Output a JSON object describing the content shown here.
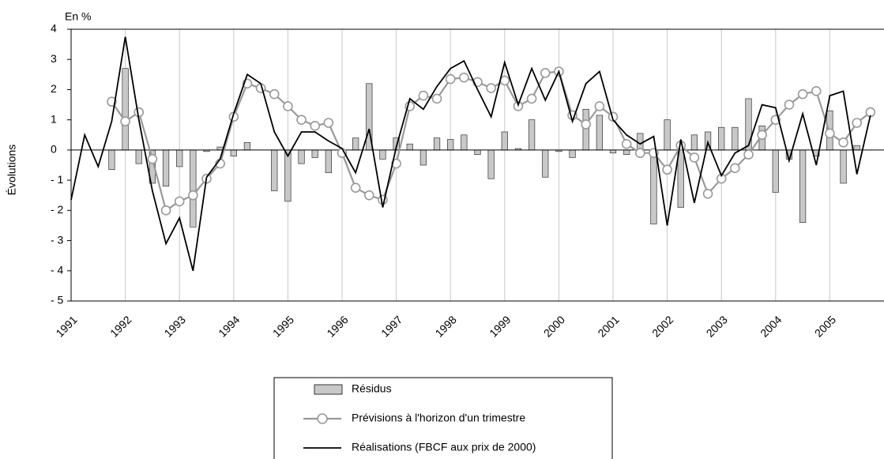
{
  "chart_data": {
    "type": "combo",
    "y_unit_label": "En %",
    "ylabel": "Évolutions",
    "x": [
      1991,
      1991.25,
      1991.5,
      1991.75,
      1992,
      1992.25,
      1992.5,
      1992.75,
      1993,
      1993.25,
      1993.5,
      1993.75,
      1994,
      1994.25,
      1994.5,
      1994.75,
      1995,
      1995.25,
      1995.5,
      1995.75,
      1996,
      1996.25,
      1996.5,
      1996.75,
      1997,
      1997.25,
      1997.5,
      1997.75,
      1998,
      1998.25,
      1998.5,
      1998.75,
      1999,
      1999.25,
      1999.5,
      1999.75,
      2000,
      2000.25,
      2000.5,
      2000.75,
      2001,
      2001.25,
      2001.5,
      2001.75,
      2002,
      2002.25,
      2002.5,
      2002.75,
      2003,
      2003.25,
      2003.5,
      2003.75,
      2004,
      2004.25,
      2004.5,
      2004.75,
      2005,
      2005.25,
      2005.5,
      2005.75,
      2006
    ],
    "series": [
      {
        "name": "Résidus",
        "kind": "bar",
        "color": "#c8c8c8",
        "values": [
          null,
          null,
          null,
          -0.65,
          2.7,
          -0.45,
          -1.1,
          -1.2,
          -0.55,
          -2.55,
          -0.05,
          0.1,
          -0.2,
          0.25,
          null,
          -1.35,
          -1.7,
          -0.45,
          -0.25,
          -0.75,
          null,
          0.4,
          2.2,
          -0.3,
          0.4,
          0.2,
          -0.5,
          0.4,
          0.35,
          0.5,
          -0.15,
          -0.95,
          0.6,
          0.05,
          1.0,
          -0.9,
          -0.05,
          -0.25,
          1.35,
          1.15,
          -0.1,
          -0.15,
          0.55,
          -2.45,
          1.0,
          -1.9,
          0.5,
          0.6,
          0.75,
          0.75,
          1.7,
          0.8,
          -1.4,
          -0.3,
          -2.4,
          -0.2,
          1.3,
          -1.1,
          0.15,
          null,
          null
        ]
      },
      {
        "name": "Prévisions à l'horizon d'un trimestre",
        "kind": "line-marker",
        "color": "#999999",
        "values": [
          null,
          null,
          null,
          1.6,
          0.95,
          1.25,
          -0.3,
          -2.0,
          -1.7,
          -1.5,
          -0.95,
          -0.45,
          1.1,
          2.2,
          2.05,
          1.85,
          1.45,
          1.0,
          0.8,
          0.9,
          -0.1,
          -1.25,
          -1.5,
          -1.65,
          -0.45,
          1.45,
          1.8,
          1.7,
          2.35,
          2.4,
          2.25,
          2.05,
          2.3,
          1.45,
          1.7,
          2.55,
          2.6,
          1.15,
          0.85,
          1.45,
          1.1,
          0.2,
          -0.1,
          -0.1,
          -0.65,
          0.15,
          -0.25,
          -1.45,
          -0.95,
          -0.6,
          -0.15,
          0.5,
          1.0,
          1.5,
          1.85,
          1.95,
          0.55,
          0.25,
          0.9,
          1.25,
          null
        ]
      },
      {
        "name": "Réalisations (FBCF aux prix de 2000)",
        "kind": "line",
        "color": "#000000",
        "values": [
          -1.65,
          0.5,
          -0.55,
          0.95,
          3.75,
          1.0,
          -1.35,
          -3.1,
          -2.25,
          -4.0,
          -0.9,
          -0.3,
          1.2,
          2.5,
          2.2,
          0.6,
          -0.2,
          0.6,
          0.6,
          0.3,
          0.05,
          -0.75,
          0.7,
          -1.9,
          0.1,
          1.7,
          1.35,
          2.1,
          2.7,
          2.95,
          2.0,
          1.1,
          2.9,
          1.5,
          2.7,
          1.65,
          2.6,
          0.95,
          2.2,
          2.6,
          1.0,
          0.5,
          0.2,
          0.45,
          -2.5,
          0.35,
          -1.75,
          0.25,
          -0.85,
          -0.1,
          0.15,
          1.5,
          1.4,
          -0.35,
          1.2,
          -0.5,
          1.8,
          1.95,
          -0.8,
          1.15,
          null
        ]
      }
    ],
    "xlim": [
      1991,
      2006
    ],
    "xticks": [
      1991,
      1992,
      1993,
      1994,
      1995,
      1996,
      1997,
      1998,
      1999,
      2000,
      2001,
      2002,
      2003,
      2004,
      2005
    ],
    "ylim": [
      -5,
      4
    ],
    "yticks": [
      {
        "value": -5,
        "label": "- 5"
      },
      {
        "value": -4,
        "label": "- 4"
      },
      {
        "value": -3,
        "label": "- 3"
      },
      {
        "value": -2,
        "label": "- 2"
      },
      {
        "value": -1,
        "label": "- 1"
      },
      0,
      1,
      2,
      3,
      4
    ],
    "grid": "x",
    "legend": "bottom"
  }
}
